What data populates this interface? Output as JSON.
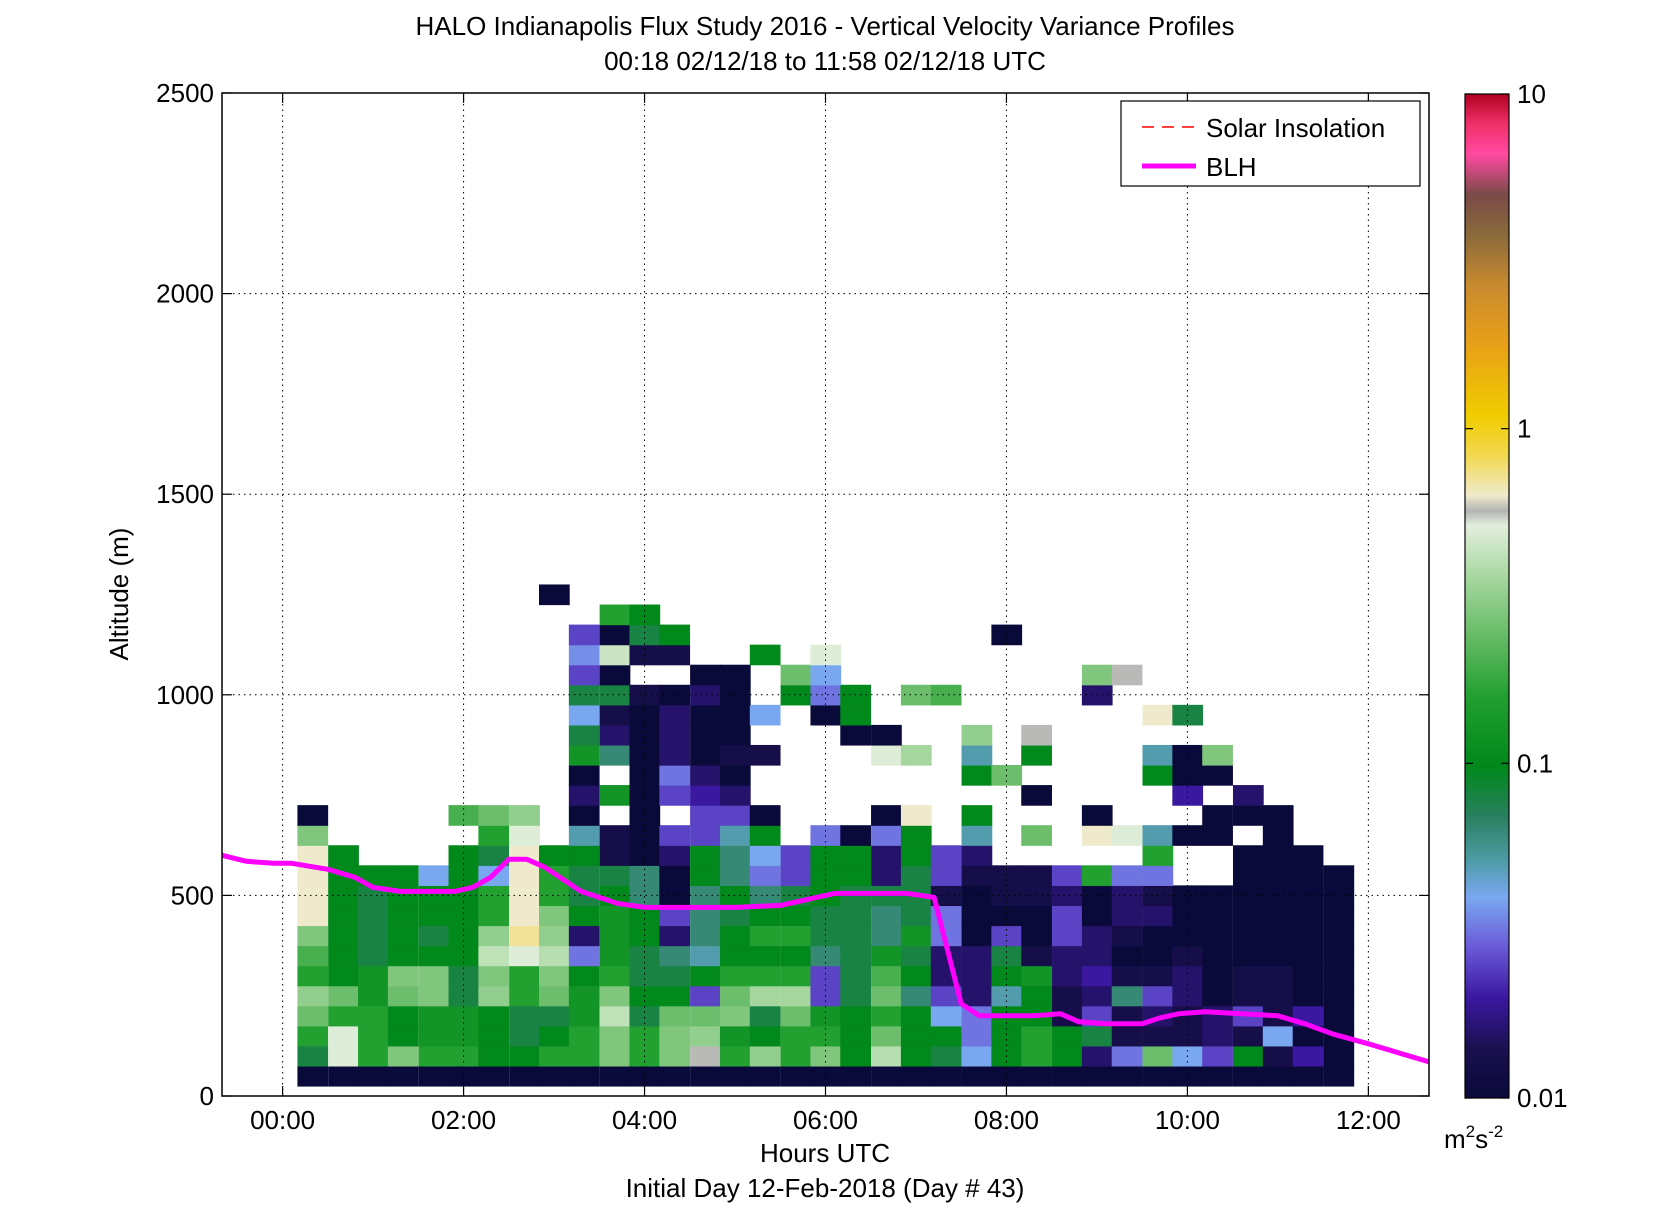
{
  "chart_data": {
    "type": "heatmap",
    "title": "HALO Indianapolis Flux Study 2016 - Vertical Velocity Variance Profiles",
    "subtitle": "00:18 02/12/18 to 11:58 02/12/18  UTC",
    "xlabel": "Hours UTC",
    "xlabel2": "Initial Day 12-Feb-2018 (Day # 43)",
    "ylabel": "Altitude (m)",
    "xlim": [
      -0.67,
      12.67
    ],
    "ylim": [
      0,
      2500
    ],
    "grid": true,
    "x_ticks": [
      0,
      2,
      4,
      6,
      8,
      10,
      12
    ],
    "x_tick_labels": [
      "00:00",
      "02:00",
      "04:00",
      "06:00",
      "08:00",
      "10:00",
      "12:00"
    ],
    "y_ticks": [
      0,
      500,
      1000,
      1500,
      2000,
      2500
    ],
    "y_tick_labels": [
      "0",
      "500",
      "1000",
      "1500",
      "2000",
      "2500"
    ],
    "legend": {
      "position": "top-right",
      "entries": [
        {
          "label": "Solar Insolation",
          "style": "dashed",
          "color": "#ff0000"
        },
        {
          "label": "BLH",
          "style": "solid",
          "color": "#ff00ff"
        }
      ]
    },
    "colorbar": {
      "scale": "log",
      "range": [
        0.01,
        10
      ],
      "ticks": [
        0.01,
        0.1,
        1,
        10
      ],
      "tick_labels": [
        "0.01",
        "0.1",
        "1",
        "10"
      ],
      "unit_base": "m",
      "unit_sup1": "2",
      "unit_mid": "s",
      "unit_sup2": "-2",
      "stops": [
        [
          0.0,
          "#0a0a3a"
        ],
        [
          0.05,
          "#1a1050"
        ],
        [
          0.1,
          "#3a18a0"
        ],
        [
          0.15,
          "#6a5ad8"
        ],
        [
          0.2,
          "#7aa8f0"
        ],
        [
          0.24,
          "#4a9aa0"
        ],
        [
          0.28,
          "#2a8060"
        ],
        [
          0.33,
          "#00881a"
        ],
        [
          0.4,
          "#22a030"
        ],
        [
          0.46,
          "#66bb66"
        ],
        [
          0.52,
          "#a8d8a0"
        ],
        [
          0.57,
          "#e2eedc"
        ],
        [
          0.585,
          "#b4b4b4"
        ],
        [
          0.6,
          "#f0eacc"
        ],
        [
          0.64,
          "#f2d850"
        ],
        [
          0.68,
          "#f0cc00"
        ],
        [
          0.75,
          "#e8a018"
        ],
        [
          0.81,
          "#c88a30"
        ],
        [
          0.86,
          "#8a6a3a"
        ],
        [
          0.9,
          "#7a4a48"
        ],
        [
          0.94,
          "#ff4aa0"
        ],
        [
          0.97,
          "#f0306a"
        ],
        [
          1.0,
          "#b00020"
        ]
      ]
    },
    "time_bins_hours": [
      0.33,
      0.67,
      1.0,
      1.33,
      1.67,
      2.0,
      2.33,
      2.67,
      3.0,
      3.33,
      3.67,
      4.0,
      4.33,
      4.67,
      5.0,
      5.33,
      5.67,
      6.0,
      6.33,
      6.67,
      7.0,
      7.33,
      7.67,
      8.0,
      8.33,
      8.67,
      9.0,
      9.33,
      9.67,
      10.0,
      10.33,
      10.67,
      11.0,
      11.33,
      11.67
    ],
    "altitude_bins_m": [
      50,
      100,
      150,
      200,
      250,
      300,
      350,
      400,
      450,
      500,
      550,
      600,
      650,
      700,
      750,
      800,
      850,
      900,
      950,
      1000,
      1050,
      1100,
      1150,
      1200,
      1250
    ],
    "cell_width_hours": 0.333,
    "cell_height_m": 50,
    "variance_m2s2_log10_rows_by_altitude": [
      "-2.0,-2.0,-2.0,-2.0,-2.0,-2.0,-2.0,-2.0,-2.0,-2.0,-2.0,-2.0,-2.0,-2.0,-2.0,-2.0,-2.0,-2.0,-2.0,-2.0,-2.0,-2.0,-2.0,-2.0,-2.0,-2.0,-2.0,-2.0,-2.0,-2.0,-2.0,-2.0,-2.0,-2.0,-2.0",
      "-1.1,-0.3,-0.8,-0.55,-0.8,-0.8,-1.0,-1.0,-0.8,-0.8,-0.55,-0.8,-0.55,-0.25,-0.8,-0.5,-0.8,-0.55,-1.0,-0.4,-1.0,-1.1,-1.4,-1.0,-0.8,-1.0,-1.8,-1.5,-0.6,-1.4,-1.6,-1.0,-1.9,-1.7,-2.0",
      "-0.8,-0.3,-0.8,-1.0,-0.9,-0.9,-1.0,-1.1,-1.0,-0.8,-0.55,-0.8,-0.55,-0.5,-0.9,-1.0,-0.8,-0.8,-1.0,-0.6,-1.0,-1.0,-1.5,-1.0,-0.8,-1.0,-1.1,-1.9,-1.9,-1.9,-1.8,-1.9,-1.4,-2.0,-2.0",
      "-0.6,-0.8,-0.8,-1.0,-0.9,-0.9,-1.0,-1.1,-1.1,-0.9,-0.38,-1.1,-0.6,-0.6,-0.55,-1.1,-0.6,-0.9,-1.0,-0.8,-1.0,-1.4,-1.5,-1.0,-1.0,-1.9,-1.6,-1.9,-1.8,-1.9,-1.8,-1.6,-1.9,-1.7,-2.0",
      "-0.5,-0.6,-0.9,-0.6,-0.55,-1.1,-0.5,-0.8,-0.6,-0.9,-0.55,-1.0,-1.0,-1.6,-0.6,-0.45,-0.45,-1.6,-1.1,-0.6,-1.2,-1.6,-1.8,-1.3,-1.0,-1.9,-1.8,-1.2,-1.6,-1.8,-2.0,-1.9,-1.9,-2.0,-2.0",
      "-0.8,-1.0,-0.9,-0.55,-0.55,-1.1,-0.55,-0.8,-0.55,-1.0,-0.8,-1.1,-1.1,-1.0,-0.8,-0.8,-0.8,-1.6,-1.1,-0.7,-1.0,-1.8,-1.8,-1.0,-0.9,-1.8,-1.7,-1.9,-1.9,-1.8,-2.0,-1.9,-1.9,-2.0,-2.0",
      "-0.7,-1.0,-1.1,-1.0,-1.0,-1.0,-0.38,-0.3,-0.4,-1.5,-0.9,-1.1,-1.2,-1.3,-1.0,-1.0,-1.0,-1.2,-1.1,-0.9,-1.1,-1.8,-1.8,-1.1,-1.9,-1.8,-1.8,-2.0,-2.0,-1.9,-2.0,-2.0,-2.0,-2.0,-2.0",
      "-0.55,-1.0,-1.1,-1.0,-1.1,-1.0,-0.5,-0.15,-0.5,-1.8,-0.9,-1.0,-1.8,-1.2,-1.0,-0.8,-0.8,-1.1,-1.1,-1.2,-0.9,-1.5,-2.0,-1.6,-2.0,-1.6,-1.8,-1.9,-2.0,-2.0,-2.0,-2.0,-2.0,-2.0,-2.0",
      "-0.2,-1.0,-1.1,-1.0,-1.0,-1.0,-0.8,-0.2,-0.55,-1.0,-0.9,-1.0,-1.6,-1.2,-1.1,-1.0,-1.0,-1.1,-1.1,-1.2,-1.1,-1.5,-2.0,-2.0,-2.0,-1.6,-2.0,-1.8,-1.8,-2.0,-2.0,-2.0,-2.0,-2.0,-2.0",
      "-0.2,-1.0,-1.1,-1.0,-1.0,-1.0,-0.8,-0.2,-0.8,-1.1,-1.0,-1.2,-2.0,-1.2,-1.0,-1.2,-1.1,-1.0,-1.1,-1.1,-1.1,-1.9,-2.0,-1.9,-1.9,-1.8,-2.0,-1.8,-1.9,-2.0,-2.0,-2.0,-2.0,-2.0,-2.0",
      "-0.2,-1.0,-1.0,-1.0,-1.4,-1.0,-1.4,-0.2,-0.8,-1.1,-1.1,-1.2,-2.0,-1.0,-1.2,-1.5,-1.6,-1.0,-1.0,-1.8,-1.1,-1.6,-1.9,-1.9,-1.9,-1.6,-0.8,-1.5,-1.5,null,null,-2.0,-2.0,-2.0,-2.0",
      "-0.2,-1.0,null,null,null,-1.0,-1.1,-0.2,-1.0,-1.0,-1.9,-2.0,-1.8,-1.0,-1.2,-1.4,-1.6,-1.0,-1.0,-1.8,-1.0,-1.6,-1.8,null,null,null,null,null,-0.8,null,null,-2.0,-2.0,-2.0,null",
      "-0.55,null,null,null,null,null,-0.8,-0.3,null,-1.3,-1.9,-2.0,-1.6,-1.6,-1.3,-1.0,null,-1.5,-2.0,-1.5,-1.0,null,-1.3,null,-0.6,null,-0.2,-0.3,-1.3,-2.0,-2.0,null,-2.0,null,null",
      "-2.0,null,null,null,null,-0.7,-0.6,-0.5,null,-2.0,null,-2.0,null,-1.6,-1.6,-2.0,null,null,null,-2.0,-0.2,null,-1.0,null,null,null,-2.0,null,null,null,-2.0,-2.0,-2.0,null,null",
      "null,null,null,null,null,null,null,null,null,-1.8,-0.9,-2.0,-1.6,-1.7,-1.8,null,null,null,null,null,null,null,null,null,-2.0,null,null,null,null,-1.7,null,-1.8,null,null,null",
      "null,null,null,null,null,null,null,null,null,-2.0,null,-2.0,-1.5,-1.8,-2.0,null,null,null,null,null,null,null,-1.0,-0.6,null,null,null,null,-1.0,-2.0,-2.0,null,null,null,null",
      "null,null,null,null,null,null,null,null,null,-0.9,-1.2,-2.0,-1.8,-2.0,-1.9,-1.9,null,null,null,-0.3,-0.45,null,-1.3,null,-1.0,null,null,null,-1.3,-2.0,-0.55,null,null,null,null",
      "null,null,null,null,null,null,null,null,null,-1.1,-1.8,-2.0,-1.8,-2.0,-2.0,null,null,null,-2.0,-2.0,null,null,-0.5,null,-0.25,null,null,null,null,null,null,null,null,null,null",
      "null,null,null,null,null,null,null,null,null,-1.4,-1.9,-2.0,-1.8,-2.0,-2.0,-1.4,null,-2.0,-1.0,null,null,null,null,null,null,null,null,null,-0.2,-1.1,null,null,null,null,null",
      "null,null,null,null,null,null,null,null,null,-1.1,-1.1,-1.9,-2.0,-1.8,-2.0,null,-1.0,-1.5,-1.0,null,-0.6,-0.7,null,null,null,null,-1.8,null,null,null,null,null,null,null,null",
      "null,null,null,null,null,null,null,null,null,-1.6,-2.0,null,null,-2.0,-2.0,null,-0.6,-1.4,null,null,null,null,null,null,null,null,-0.55,-0.25,null,null,null,null,null,null,null",
      "null,null,null,null,null,null,null,null,null,-1.45,-0.35,-1.9,-1.9,null,null,-1.0,null,-0.3,null,null,null,null,null,null,null,null,null,null,null,null,null,null,null,null,null",
      "null,null,null,null,null,null,null,null,null,-1.6,-2.0,-1.1,-1.0,null,null,null,null,null,null,null,null,null,null,-2.0,null,null,null,null,null,null,null,null,null,null,null",
      "null,null,null,null,null,null,null,null,null,null,-0.8,-1.0,null,null,null,null,null,null,null,null,null,null,null,null,null,null,null,null,null,null,null,null,null,null,null",
      "null,null,null,null,null,null,null,null,-2.0,null,null,null,null,null,null,null,null,null,null,null,null,null,null,null,null,null,null,null,null,null,null,null,null,null,null"
    ],
    "series": [
      {
        "name": "BLH",
        "color": "#ff00ff",
        "x": [
          -0.67,
          -0.4,
          -0.1,
          0.1,
          0.5,
          0.8,
          1.0,
          1.3,
          1.6,
          1.9,
          2.1,
          2.3,
          2.5,
          2.7,
          2.9,
          3.1,
          3.3,
          3.5,
          3.7,
          4.0,
          4.5,
          5.0,
          5.5,
          5.8,
          6.1,
          6.5,
          6.9,
          7.2,
          7.5,
          7.7,
          8.0,
          8.3,
          8.6,
          8.8,
          9.1,
          9.5,
          9.7,
          9.9,
          10.2,
          10.6,
          11.0,
          11.3,
          11.6,
          12.0,
          12.3,
          12.67
        ],
        "y": [
          600,
          585,
          580,
          580,
          565,
          545,
          520,
          510,
          510,
          510,
          520,
          545,
          590,
          590,
          570,
          540,
          510,
          495,
          480,
          470,
          470,
          470,
          475,
          490,
          505,
          505,
          505,
          495,
          230,
          200,
          200,
          200,
          205,
          185,
          180,
          180,
          195,
          205,
          210,
          205,
          200,
          180,
          155,
          130,
          110,
          85
        ]
      },
      {
        "name": "Solar Insolation",
        "color": "#ff0000",
        "x": [],
        "y": []
      }
    ]
  }
}
